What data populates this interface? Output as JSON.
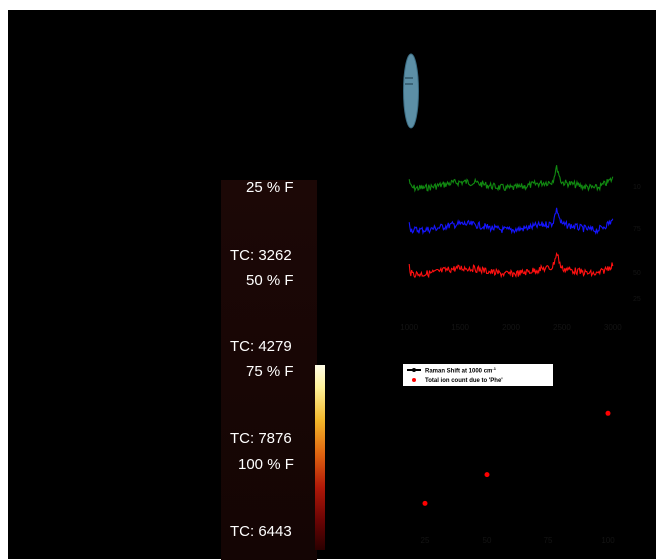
{
  "panels": {
    "heatmap": {
      "labels": [
        {
          "key": "f25",
          "text": "25 % F"
        },
        {
          "key": "tc25",
          "text": "TC: 3262"
        },
        {
          "key": "f50",
          "text": "50 % F"
        },
        {
          "key": "tc50",
          "text": "TC: 4279"
        },
        {
          "key": "f75",
          "text": "75 % F"
        },
        {
          "key": "tc75",
          "text": "TC: 7876"
        },
        {
          "key": "f100",
          "text": "100 % F"
        },
        {
          "key": "tc100",
          "text": "TC: 6443"
        }
      ],
      "colorbar_colors": [
        "#fffde8",
        "#fff29a",
        "#f3b62a",
        "#e06410",
        "#b01808",
        "#6a0404",
        "#2a0000"
      ]
    },
    "legend": {
      "entries": [
        {
          "label": "Raman Shift at 1000 cm",
          "superscript": "-1",
          "marker": "line",
          "color": "#000000"
        },
        {
          "label": "Total ion count due to 'Phe'",
          "marker": "dot",
          "color": "#ff0000"
        }
      ]
    }
  },
  "chart_data": [
    {
      "type": "line",
      "x_range": [
        900,
        3100
      ],
      "x_ticks": [
        1000,
        1500,
        2000,
        2500,
        3000
      ],
      "series": [
        {
          "label": "100 % F",
          "color": "#118a11",
          "offset": 2
        },
        {
          "label": "75 % F",
          "color": "#1515ff",
          "offset": 1
        },
        {
          "label": "50 % F",
          "color": "#ff1010",
          "offset": 0
        }
      ],
      "extra_right_label": "25 % F"
    },
    {
      "type": "scatter",
      "x_ticks": [
        "25",
        "50",
        "75",
        "100"
      ],
      "series": [
        {
          "name": "Total ion count due to 'Phe'",
          "color": "#ff0000",
          "points": [
            {
              "x": 25,
              "y": 3262
            },
            {
              "x": 50,
              "y": 4279
            },
            {
              "x": 75,
              "y": 7876
            },
            {
              "x": 100,
              "y": 6443
            }
          ]
        }
      ],
      "ylim": [
        2500,
        8500
      ]
    }
  ]
}
